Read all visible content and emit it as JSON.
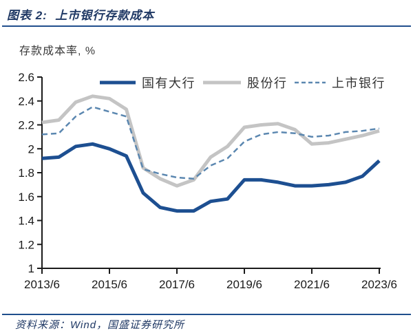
{
  "header": {
    "title": "图表 2:  上市银行存款成本"
  },
  "ylabel": "存款成本率, %",
  "footer": {
    "source": "资料来源：Wind，国盛证券研究所"
  },
  "colors": {
    "accent_navy": "#1f3864",
    "rule_blue": "#1f4e8c",
    "axis": "#1a1a1a",
    "tick_text": "#1a1a1a",
    "legend_text": "#333333"
  },
  "chart_data": {
    "type": "line",
    "title": "上市银行存款成本",
    "ylabel": "存款成本率, %",
    "xlabel": "",
    "grid": false,
    "legend_position": "top",
    "ylim": [
      1,
      2.6
    ],
    "yticks": [
      "2.6",
      "2.4",
      "2.2",
      "2",
      "1.8",
      "1.6",
      "1.4",
      "1.2",
      "1"
    ],
    "xtick_every": 4,
    "xtick_labels": [
      "2013/6",
      "2015/6",
      "2017/6",
      "2019/6",
      "2021/6",
      "2023/6"
    ],
    "categories": [
      "2013/6",
      "2013/12",
      "2014/6",
      "2014/12",
      "2015/6",
      "2015/12",
      "2016/6",
      "2016/12",
      "2017/6",
      "2017/12",
      "2018/6",
      "2018/12",
      "2019/6",
      "2019/12",
      "2020/6",
      "2020/12",
      "2021/6",
      "2021/12",
      "2022/6",
      "2022/12",
      "2023/6"
    ],
    "series": [
      {
        "name": "国有大行",
        "color": "#1d4f91",
        "style": "solid",
        "width": 5,
        "values": [
          1.92,
          1.93,
          2.02,
          2.04,
          2.0,
          1.94,
          1.63,
          1.51,
          1.48,
          1.48,
          1.56,
          1.58,
          1.74,
          1.74,
          1.72,
          1.69,
          1.69,
          1.7,
          1.72,
          1.77,
          1.9
        ]
      },
      {
        "name": "股份行",
        "color": "#c4c4c4",
        "style": "solid",
        "width": 5,
        "values": [
          2.22,
          2.24,
          2.39,
          2.44,
          2.42,
          2.33,
          1.84,
          1.75,
          1.69,
          1.74,
          1.93,
          2.02,
          2.18,
          2.2,
          2.21,
          2.16,
          2.04,
          2.05,
          2.08,
          2.11,
          2.15
        ]
      },
      {
        "name": "上市银行",
        "color": "#5b87b0",
        "style": "dashed",
        "width": 2.5,
        "values": [
          2.12,
          2.13,
          2.27,
          2.35,
          2.31,
          2.27,
          1.83,
          1.79,
          1.76,
          1.75,
          1.86,
          1.92,
          2.06,
          2.12,
          2.14,
          2.13,
          2.1,
          2.11,
          2.14,
          2.15,
          2.17
        ]
      }
    ]
  }
}
